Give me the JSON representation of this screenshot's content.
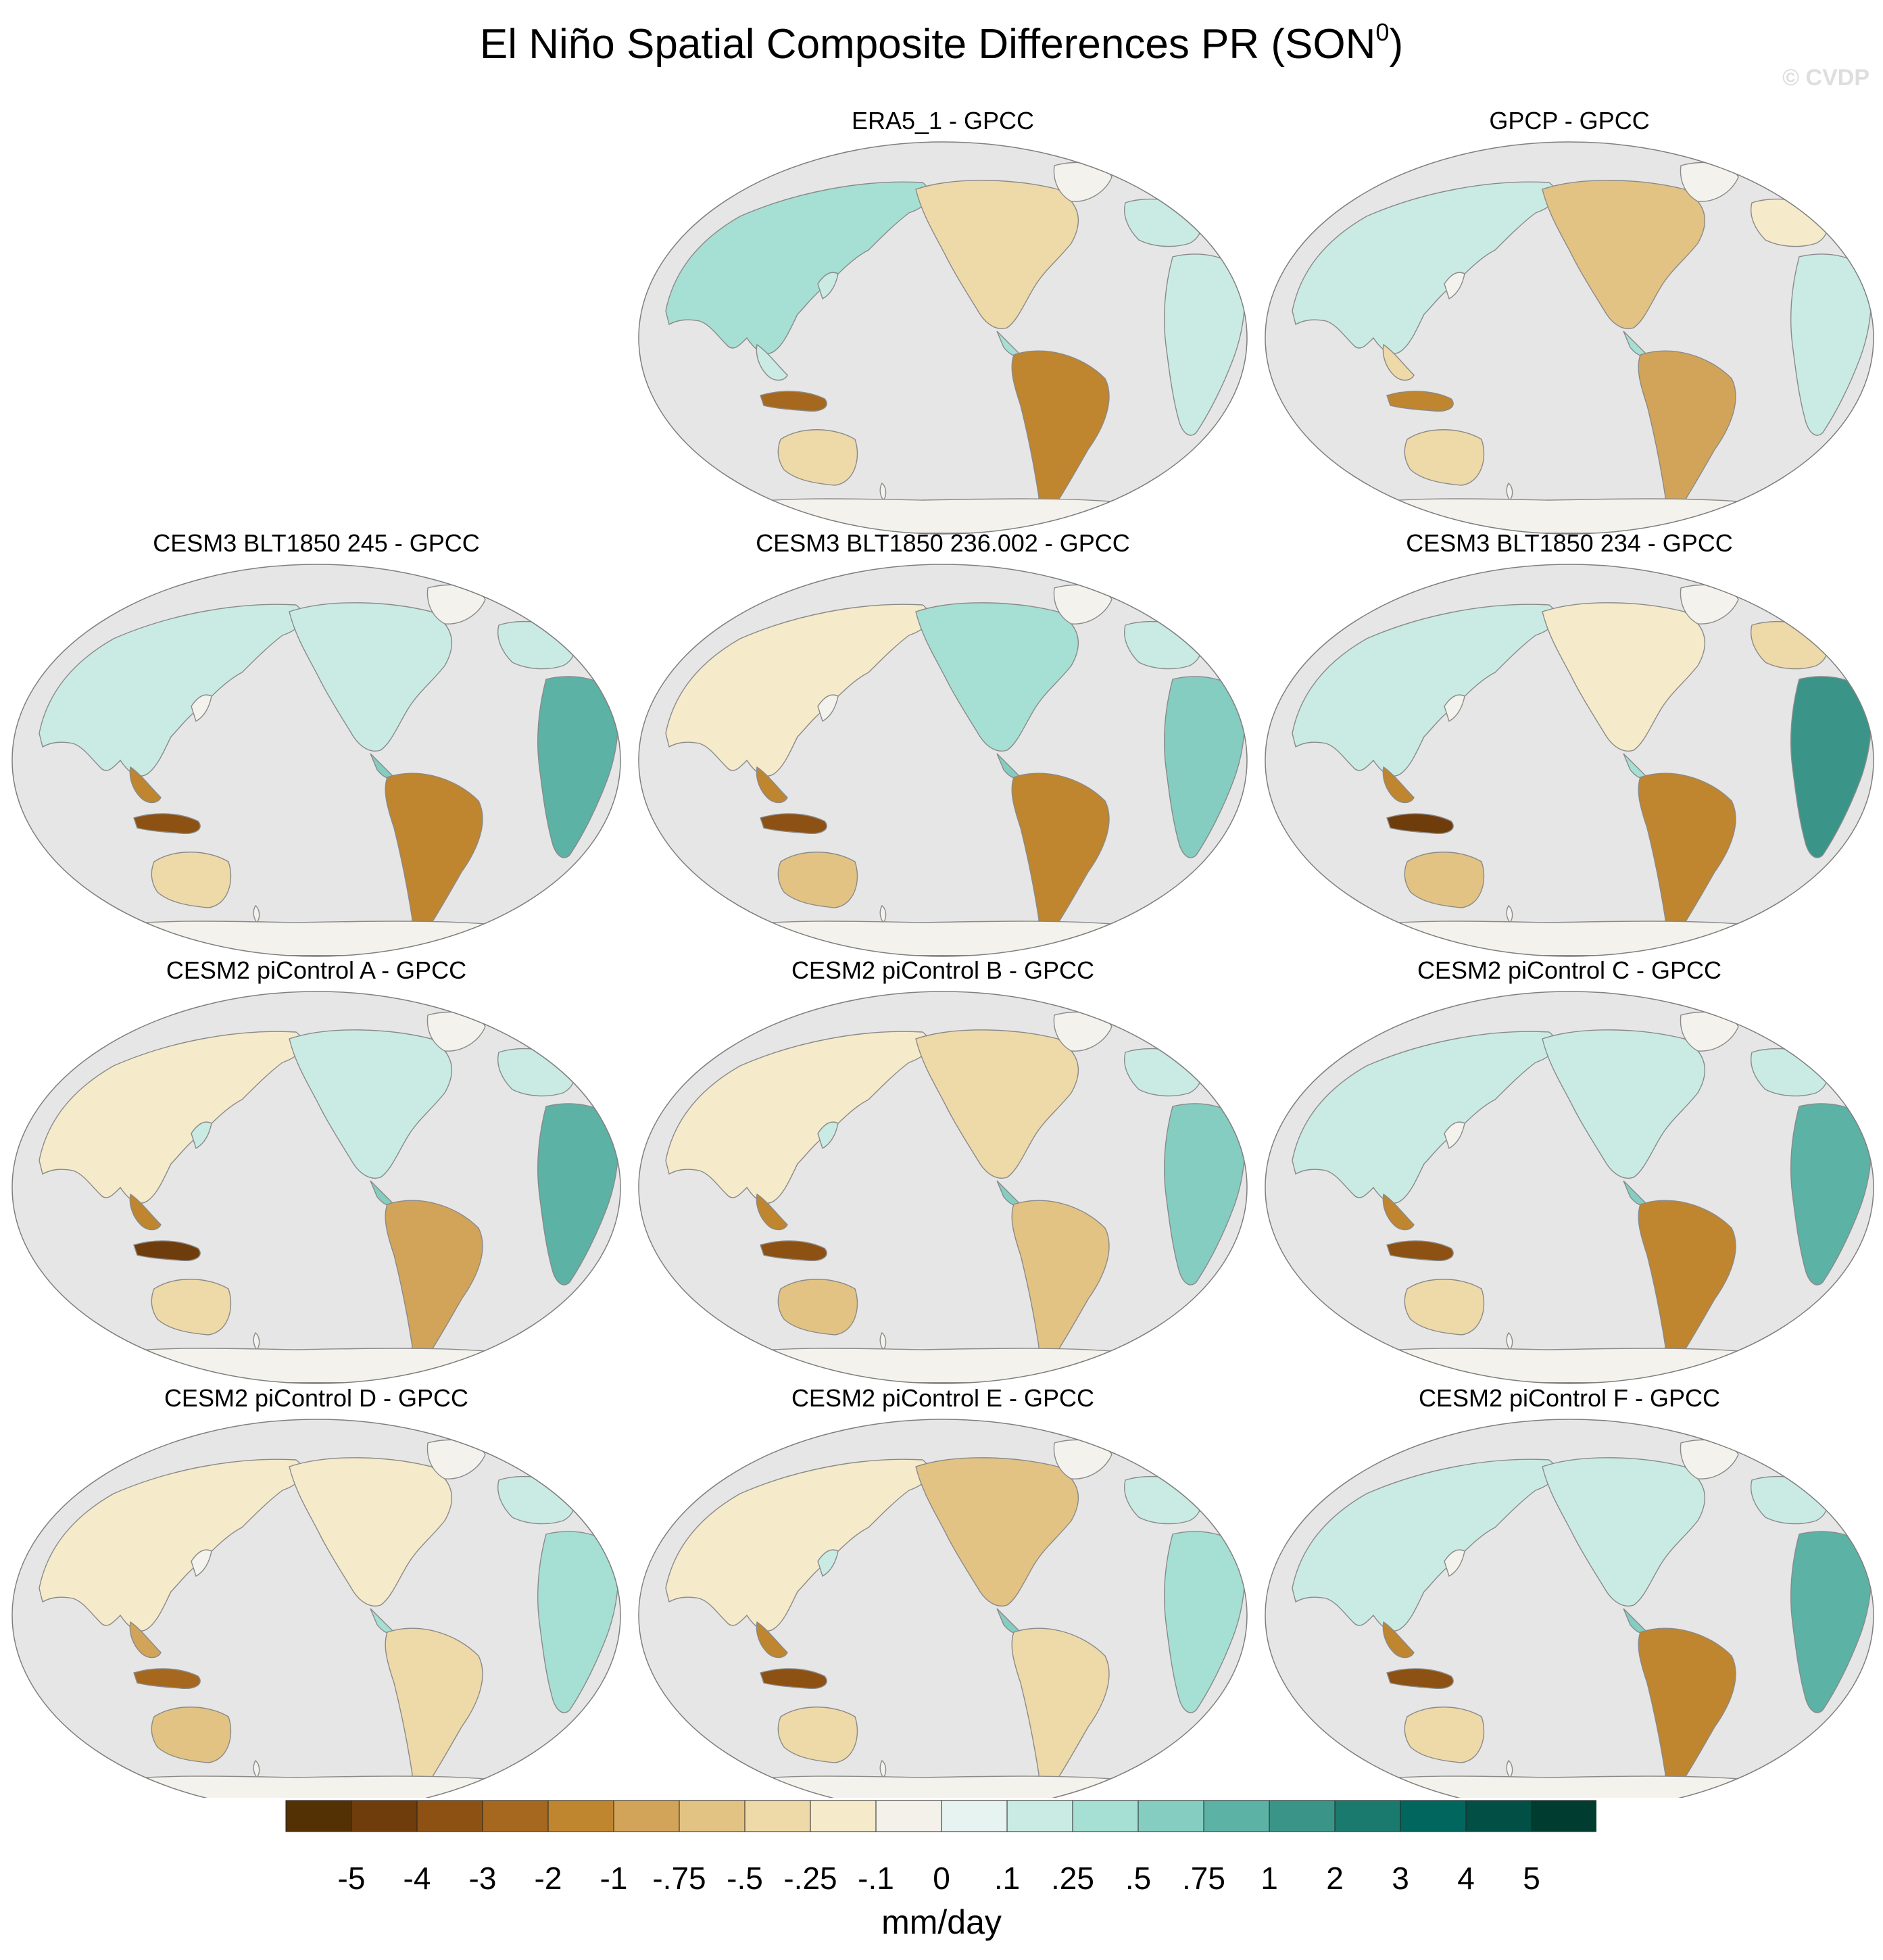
{
  "title": {
    "main": "El Niño Spatial Composite Differences PR (SON",
    "superscript": "0",
    "close": ")"
  },
  "watermark": "© CVDP",
  "panels": [
    {
      "title": "ERA5_1 - GPCC",
      "pattern": "strong-brown-south-america"
    },
    {
      "title": "GPCP - GPCC",
      "pattern": "brown-south-america-teal-spot"
    },
    {
      "title": "CESM3 BLT1850 245 - GPCC",
      "pattern": "teal-east-africa"
    },
    {
      "title": "CESM3 BLT1850 236.002 - GPCC",
      "pattern": "brown-brazil-teal-east-africa"
    },
    {
      "title": "CESM3 BLT1850 234 - GPCC",
      "pattern": "strong-teal-east-africa"
    },
    {
      "title": "CESM2 piControl A - GPCC",
      "pattern": "brown-maritime-continent"
    },
    {
      "title": "CESM2 piControl B - GPCC",
      "pattern": "mixed"
    },
    {
      "title": "CESM2 piControl C - GPCC",
      "pattern": "teal-east-africa"
    },
    {
      "title": "CESM2 piControl D - GPCC",
      "pattern": "weak-mixed"
    },
    {
      "title": "CESM2 piControl E - GPCC",
      "pattern": "brown-north-america"
    },
    {
      "title": "CESM2 piControl F - GPCC",
      "pattern": "teal-east-africa"
    }
  ],
  "colorbar": {
    "units": "mm/day",
    "labels": [
      "-5",
      "-4",
      "-3",
      "-2",
      "-1",
      "-.75",
      "-.5",
      "-.25",
      "-.1",
      "0",
      ".1",
      ".25",
      ".5",
      ".75",
      "1",
      "2",
      "3",
      "4",
      "5"
    ],
    "colors": [
      "#543005",
      "#6f3d0c",
      "#8c5113",
      "#a6681f",
      "#bf852f",
      "#d2a459",
      "#e2c383",
      "#eed9a8",
      "#f5eac9",
      "#f4f1ea",
      "#e6f3f0",
      "#c9ebe4",
      "#a6dfd4",
      "#84cdc0",
      "#5cb2a5",
      "#3a9588",
      "#1a7a6e",
      "#01665e",
      "#024f45",
      "#003c30"
    ]
  },
  "map_style": {
    "ocean": "#e6e6e6",
    "outline": "#7f7f7f",
    "coast": "#8a8a8a"
  }
}
